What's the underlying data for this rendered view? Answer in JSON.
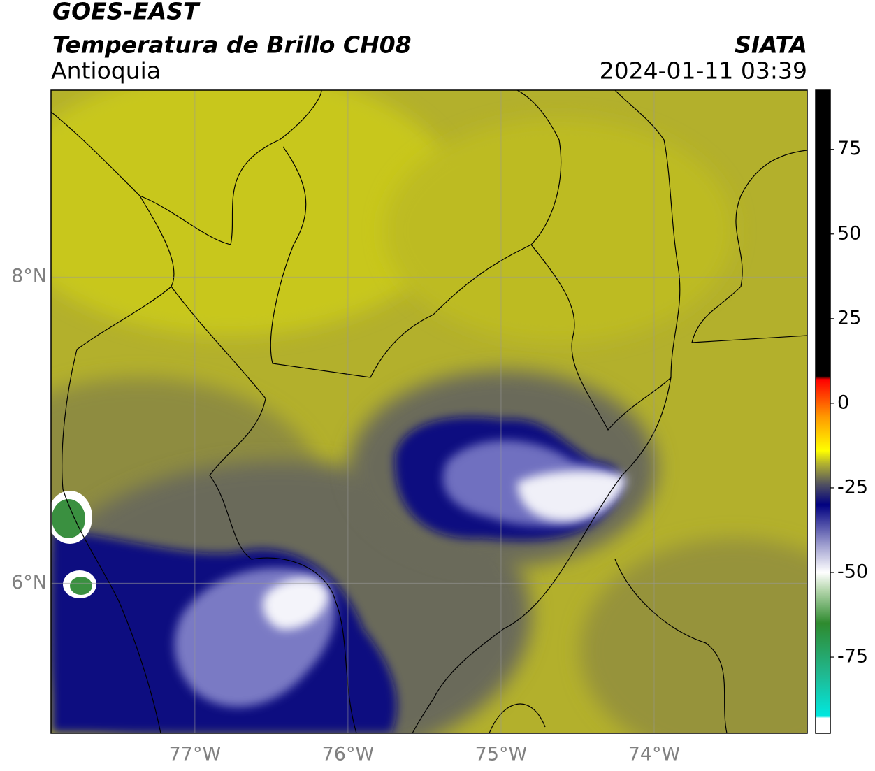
{
  "header": {
    "title": "GOES-EAST",
    "subtitle": "Temperatura de Brillo CH08",
    "region": "Antioquia",
    "source": "SIATA",
    "datetime": "2024-01-11 03:39"
  },
  "map": {
    "xlim": [
      -77.94,
      -73.0
    ],
    "ylim": [
      5.02,
      9.22
    ],
    "xticks": [
      {
        "value": -77,
        "label": "77°W"
      },
      {
        "value": -76,
        "label": "76°W"
      },
      {
        "value": -75,
        "label": "75°W"
      },
      {
        "value": -74,
        "label": "74°W"
      }
    ],
    "yticks": [
      {
        "value": 6,
        "label": "6°N"
      },
      {
        "value": 8,
        "label": "8°N"
      }
    ],
    "grid": true
  },
  "colorbar": {
    "lim": [
      -97.5,
      92.5
    ],
    "ticks": [
      -75,
      -50,
      -25,
      0,
      25,
      50,
      75
    ],
    "colormap": [
      {
        "value": -97.5,
        "color": "#ffffff"
      },
      {
        "value": -93,
        "color": "#ffffff"
      },
      {
        "value": -92.5,
        "color": "#00e8e0"
      },
      {
        "value": -80,
        "color": "#20b890"
      },
      {
        "value": -65,
        "color": "#2e8a2e"
      },
      {
        "value": -55,
        "color": "#b8d8b0"
      },
      {
        "value": -50,
        "color": "#ffffff"
      },
      {
        "value": -42,
        "color": "#a0a0d0"
      },
      {
        "value": -30,
        "color": "#000080"
      },
      {
        "value": -24,
        "color": "#505060"
      },
      {
        "value": -18,
        "color": "#b0b030"
      },
      {
        "value": -14,
        "color": "#ffff00"
      },
      {
        "value": -4,
        "color": "#ff9900"
      },
      {
        "value": 7,
        "color": "#ff0000"
      },
      {
        "value": 8,
        "color": "#000000"
      },
      {
        "value": 92.5,
        "color": "#000000"
      }
    ]
  }
}
